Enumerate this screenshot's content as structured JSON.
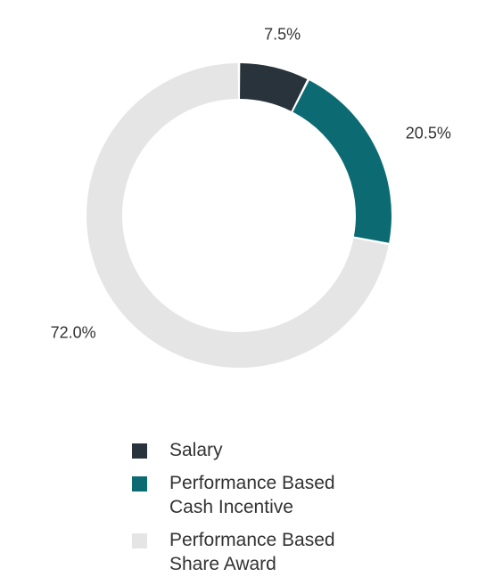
{
  "chart_data": {
    "type": "pie",
    "style": "donut",
    "start_angle_deg": 0,
    "direction": "clockwise",
    "series": [
      {
        "name": "Salary",
        "value": 7.5,
        "label": "7.5%",
        "color": "#28333b"
      },
      {
        "name": "Performance Based\nCash Incentive",
        "value": 20.5,
        "label": "20.5%",
        "color": "#0c6b72"
      },
      {
        "name": "Performance Based\nShare Award",
        "value": 72.0,
        "label": "72.0%",
        "color": "#e5e5e5"
      }
    ],
    "legend_position": "bottom"
  }
}
